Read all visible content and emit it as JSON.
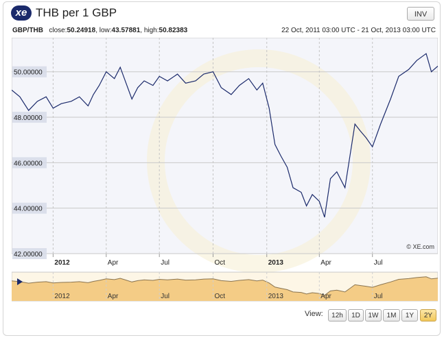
{
  "header": {
    "logo_text": "xe",
    "title": "THB per 1 GBP",
    "inv_label": "INV"
  },
  "meta": {
    "pair": "GBP/THB",
    "close_label": "close:",
    "close_value": "50.24918",
    "low_label": "low:",
    "low_value": "43.57881",
    "high_label": "high:",
    "high_value": "50.82383",
    "date_range": "22 Oct, 2011 03:00 UTC - 21 Oct, 2013 03:00 UTC"
  },
  "chart_data": {
    "type": "line",
    "title": "THB per 1 GBP",
    "xlabel": "",
    "ylabel": "",
    "ylim": [
      42,
      51.5
    ],
    "y_ticks": [
      "42.00000",
      "44.00000",
      "46.00000",
      "48.00000",
      "50.00000"
    ],
    "x_tick_labels": [
      "2012",
      "Apr",
      "Jul",
      "Oct",
      "2013",
      "Apr",
      "Jul"
    ],
    "x_tick_dates": [
      "2012-01-01",
      "2012-04-01",
      "2012-07-01",
      "2012-10-01",
      "2013-01-01",
      "2013-04-01",
      "2013-07-01"
    ],
    "x_range": [
      "2011-10-22",
      "2013-10-21"
    ],
    "grid": true,
    "series": [
      {
        "name": "GBP/THB",
        "x": [
          "2011-10-22",
          "2011-11-05",
          "2011-11-20",
          "2011-12-05",
          "2011-12-20",
          "2012-01-01",
          "2012-01-15",
          "2012-02-01",
          "2012-02-15",
          "2012-03-01",
          "2012-03-10",
          "2012-03-20",
          "2012-04-01",
          "2012-04-15",
          "2012-04-25",
          "2012-05-05",
          "2012-05-15",
          "2012-05-25",
          "2012-06-05",
          "2012-06-20",
          "2012-07-01",
          "2012-07-15",
          "2012-08-01",
          "2012-08-15",
          "2012-09-01",
          "2012-09-15",
          "2012-10-01",
          "2012-10-15",
          "2012-11-01",
          "2012-11-15",
          "2012-12-01",
          "2012-12-15",
          "2012-12-25",
          "2013-01-05",
          "2013-01-15",
          "2013-01-25",
          "2013-02-05",
          "2013-02-15",
          "2013-03-01",
          "2013-03-10",
          "2013-03-20",
          "2013-04-01",
          "2013-04-10",
          "2013-04-20",
          "2013-05-01",
          "2013-05-15",
          "2013-06-01",
          "2013-06-10",
          "2013-06-20",
          "2013-07-01",
          "2013-07-15",
          "2013-08-01",
          "2013-08-15",
          "2013-09-01",
          "2013-09-15",
          "2013-10-01",
          "2013-10-10",
          "2013-10-21"
        ],
        "values": [
          49.2,
          48.9,
          48.3,
          48.7,
          48.9,
          48.4,
          48.6,
          48.7,
          48.9,
          48.5,
          49.0,
          49.4,
          50.0,
          49.7,
          50.2,
          49.5,
          48.8,
          49.3,
          49.6,
          49.4,
          49.8,
          49.6,
          49.9,
          49.5,
          49.6,
          49.9,
          50.0,
          49.3,
          49.0,
          49.4,
          49.7,
          49.2,
          49.5,
          48.4,
          46.8,
          46.3,
          45.8,
          44.9,
          44.7,
          44.1,
          44.6,
          44.3,
          43.6,
          45.3,
          45.6,
          44.9,
          47.7,
          47.4,
          47.1,
          46.7,
          47.7,
          48.8,
          49.8,
          50.1,
          50.5,
          50.8,
          50.0,
          50.25
        ]
      }
    ],
    "annotation": "© XE.com",
    "navigator": {
      "tick_labels": [
        "2012",
        "Apr",
        "Jul",
        "Oct",
        "2013",
        "Apr",
        "Jul"
      ]
    },
    "colors": {
      "line": "#1b2a6b",
      "plot_bg": "#f4f5fa",
      "y_label_bg": "#d6dbe8",
      "navigator_fill": "#f4cc86",
      "navigator_line": "#8a7450",
      "active_button": "#f2c85a"
    }
  },
  "controls": {
    "view_label": "View:",
    "buttons": [
      "12h",
      "1D",
      "1W",
      "1M",
      "1Y",
      "2Y"
    ],
    "active": "2Y"
  }
}
